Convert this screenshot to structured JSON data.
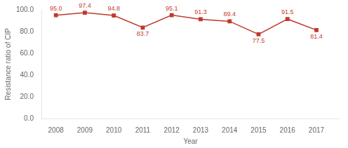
{
  "chart_data": {
    "type": "line",
    "x": [
      2008,
      2009,
      2010,
      2011,
      2012,
      2013,
      2014,
      2015,
      2016,
      2017
    ],
    "values": [
      95.0,
      97.4,
      94.8,
      83.7,
      95.1,
      91.3,
      89.4,
      77.5,
      91.5,
      81.4
    ],
    "value_labels": [
      "95.0",
      "97.4",
      "94.8",
      "83.7",
      "95.1",
      "91.3",
      "89.4",
      "77.5",
      "91.5",
      "81.4"
    ],
    "data_labels": true,
    "color": "#c0392b",
    "marker": "square",
    "xlabel": "Year",
    "ylabel": "Resistance ratio of CIP",
    "xlim": [
      2007.5,
      2017.8
    ],
    "xticks": [
      2008,
      2009,
      2010,
      2011,
      2012,
      2013,
      2014,
      2015,
      2016,
      2017
    ],
    "ylim": [
      0.0,
      100.0
    ],
    "yticks": [
      {
        "value": 0,
        "label": "0.0"
      },
      {
        "value": 20,
        "label": "20.0"
      },
      {
        "value": 40,
        "label": "40.0"
      },
      {
        "value": 60,
        "label": "60.0"
      },
      {
        "value": 80,
        "label": "80.0"
      },
      {
        "value": 100,
        "label": "100.0"
      }
    ],
    "grid": false
  }
}
